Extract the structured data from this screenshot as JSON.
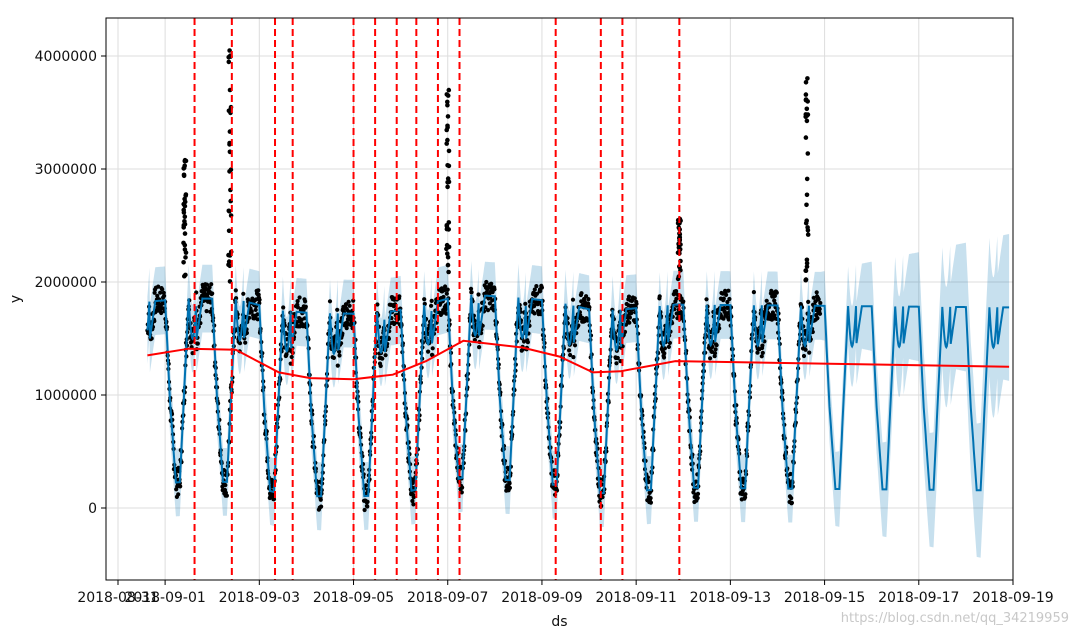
{
  "chart_data": {
    "type": "line",
    "title": "",
    "xlabel": "ds",
    "ylabel": "y",
    "x_range": [
      "2018-08-31",
      "2018-09-19"
    ],
    "ylim": [
      -600000,
      4350000
    ],
    "grid": true,
    "x_ticks": [
      "2018-08-31",
      "2018-09-01",
      "2018-09-03",
      "2018-09-05",
      "2018-09-07",
      "2018-09-09",
      "2018-09-11",
      "2018-09-13",
      "2018-09-15",
      "2018-09-17",
      "2018-09-19"
    ],
    "x_tick_labels": [
      "2018-08-31",
      "2018-09-01",
      "2018-09-03",
      "2018-09-05",
      "2018-09-07",
      "2018-09-09",
      "2018-09-11",
      "2018-09-13",
      "2018-09-15",
      "2018-09-17",
      "2018-09-19"
    ],
    "y_ticks": [
      0,
      1000000,
      2000000,
      3000000,
      4000000
    ],
    "y_tick_labels": [
      "0",
      "1000000",
      "2000000",
      "3000000",
      "4000000"
    ],
    "history_range": [
      "2018-08-31T15:00",
      "2018-09-14T22:00"
    ],
    "forecast_end": "2018-09-18T22:00",
    "trend": {
      "name": "trend",
      "points": [
        [
          "2018-08-31T15:00",
          1350000
        ],
        [
          "2018-09-01T12:00",
          1410000
        ],
        [
          "2018-09-02T12:00",
          1400000
        ],
        [
          "2018-09-03T10:00",
          1200000
        ],
        [
          "2018-09-04T02:00",
          1150000
        ],
        [
          "2018-09-05T00:00",
          1140000
        ],
        [
          "2018-09-05T20:00",
          1180000
        ],
        [
          "2018-09-06T13:00",
          1300000
        ],
        [
          "2018-09-07T08:00",
          1480000
        ],
        [
          "2018-09-08T14:00",
          1420000
        ],
        [
          "2018-09-09T09:00",
          1340000
        ],
        [
          "2018-09-10T02:00",
          1200000
        ],
        [
          "2018-09-10T16:00",
          1210000
        ],
        [
          "2018-09-11T20:00",
          1300000
        ],
        [
          "2018-09-18T22:00",
          1250000
        ]
      ]
    },
    "forecast": {
      "name": "yhat",
      "daily_high": 1800000,
      "daily_low": 180000,
      "band_width_history": 300000,
      "band_width_future_start": 300000,
      "band_width_future_end": 650000
    },
    "observed_spikes": [
      {
        "x": "2018-09-01T10:00",
        "max": 3100000
      },
      {
        "x": "2018-09-02T09:00",
        "max": 4100000
      },
      {
        "x": "2018-09-07T00:00",
        "max": 3750000
      },
      {
        "x": "2018-09-11T22:00",
        "max": 2600000
      },
      {
        "x": "2018-09-14T15:00",
        "max": 3820000
      }
    ],
    "changepoints": [
      "2018-09-01T15:00",
      "2018-09-02T10:00",
      "2018-09-03T08:00",
      "2018-09-03T17:00",
      "2018-09-05T00:00",
      "2018-09-05T11:00",
      "2018-09-05T22:00",
      "2018-09-06T08:00",
      "2018-09-06T19:00",
      "2018-09-07T06:00",
      "2018-09-09T07:00",
      "2018-09-10T06:00",
      "2018-09-10T17:00",
      "2018-09-11T22:00"
    ],
    "colors": {
      "forecast_line": "#0072B2",
      "uncertainty_band": "#0072B2",
      "observed": "#000000",
      "trend": "#ff0000",
      "changepoint": "#ff0000",
      "grid": "#dddddd",
      "axes": "#000000"
    }
  },
  "watermark": "https://blog.csdn.net/qq_34219959"
}
